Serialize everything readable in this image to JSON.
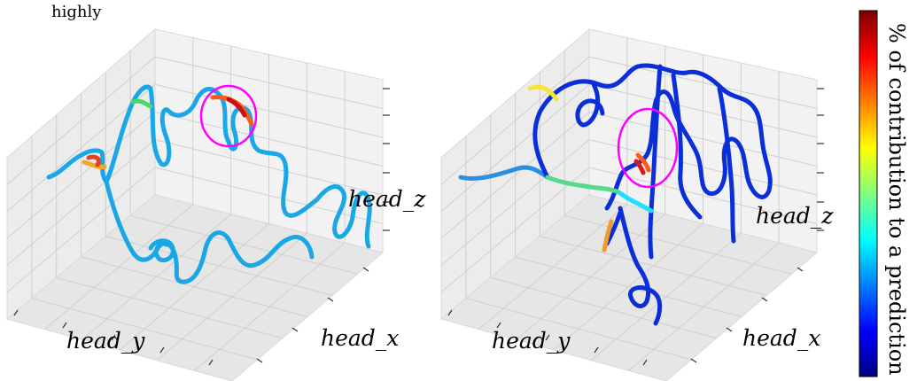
{
  "caption_fragment": "highly",
  "colormap": {
    "name": "jet",
    "stops": [
      "#00007f",
      "#0000ff",
      "#007fff",
      "#00ffff",
      "#7fff7f",
      "#ffff00",
      "#ff7f00",
      "#ff0000",
      "#7f0000"
    ],
    "label": "% of contribution to a prediction"
  },
  "highlight_color": "#ff00ff",
  "chart_data": [
    {
      "type": "3d-line",
      "xlabel": "head_y",
      "ylabel": "head_x",
      "zlabel": "head_z",
      "grid": true,
      "dominant_color": "light-blue",
      "highlight": "magenta ellipse around high-contribution segment (upper middle)"
    },
    {
      "type": "3d-line",
      "xlabel": "head_y",
      "ylabel": "head_x",
      "zlabel": "head_z",
      "grid": true,
      "dominant_color": "dark-blue",
      "highlight": "magenta ellipse around high-contribution segment (center)"
    }
  ]
}
